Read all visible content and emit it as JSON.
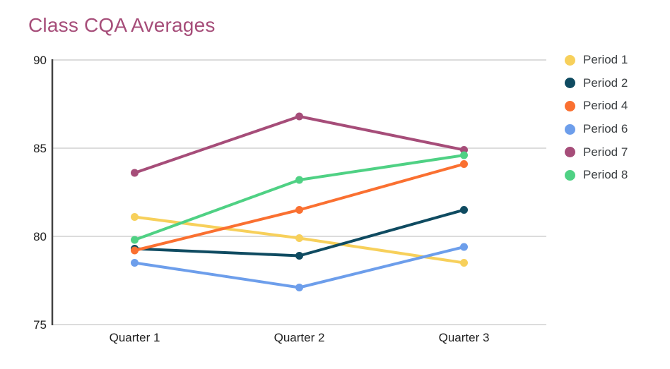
{
  "title": "Class CQA Averages",
  "title_color": "#A64D79",
  "chart_data": {
    "type": "line",
    "title": "Class CQA Averages",
    "categories": [
      "Quarter 1",
      "Quarter 2",
      "Quarter 3"
    ],
    "series": [
      {
        "name": "Period 1",
        "color": "#F7D05B",
        "values": [
          81.1,
          79.9,
          78.5
        ]
      },
      {
        "name": "Period 2",
        "color": "#0F4B61",
        "values": [
          79.3,
          78.9,
          81.5
        ]
      },
      {
        "name": "Period 4",
        "color": "#FA7031",
        "values": [
          79.2,
          81.5,
          84.1
        ]
      },
      {
        "name": "Period 6",
        "color": "#6D9EEB",
        "values": [
          78.5,
          77.1,
          79.4
        ]
      },
      {
        "name": "Period 7",
        "color": "#A64D79",
        "values": [
          83.6,
          86.8,
          84.9
        ]
      },
      {
        "name": "Period 8",
        "color": "#4FD184",
        "values": [
          79.8,
          83.2,
          84.6
        ]
      }
    ],
    "xlabel": "",
    "ylabel": "",
    "ylim": [
      75,
      90
    ],
    "yticks": [
      75,
      80,
      85,
      90
    ],
    "grid": true,
    "legend_position": "right",
    "axis_color": "#424242",
    "grid_color": "#DCDCDC",
    "label_color": "#212121",
    "legend_text_color": "#3C4043"
  }
}
